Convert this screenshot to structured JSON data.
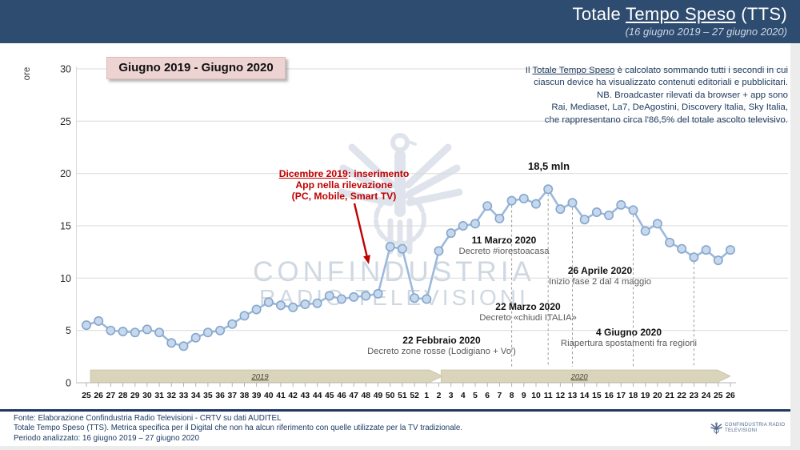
{
  "header": {
    "title_prefix": "Totale ",
    "title_underlined": "Tempo Speso",
    "title_suffix": " (TTS)",
    "subtitle": "(16 giugno 2019 – 27 giugno 2020)"
  },
  "range_box": "Giugno 2019 - Giugno 2020",
  "info_note": {
    "line1_prefix": "Il ",
    "line1_underlined": "Totale Tempo Speso",
    "line1_rest": " è calcolato sommando tutti i secondi in cui",
    "line2": "ciascun device ha visualizzato contenuti editoriali e pubblicitari.",
    "line3": "NB. Broadcaster rilevati da browser + app sono",
    "line4": "Rai, Mediaset, La7, DeAgostini, Discovery Italia, Sky Italia,",
    "line5": "che rappresentano circa l'86,5% del totale ascolto televisivo."
  },
  "app_note": {
    "underlined": "Dicembre 2019",
    "rest": ": inserimento",
    "line2": "App nella rilevazione",
    "line3": "(PC, Mobile, Smart TV)"
  },
  "peak_label": "18,5 mln",
  "events": [
    {
      "date": "22 Febbraio 2020",
      "desc": "Decreto zone rosse (Lodigiano + Vo')"
    },
    {
      "date": "11 Marzo 2020",
      "desc": "Decreto #iorestoacasa"
    },
    {
      "date": "22 Marzo 2020",
      "desc": "Decreto «chiudi ITALIA»"
    },
    {
      "date": "26 Aprile 2020",
      "desc": "Inizio fase 2 dal 4 maggio"
    },
    {
      "date": "4 Giugno 2020",
      "desc": "Riapertura spostamenti fra regioni"
    }
  ],
  "watermark": {
    "line1": "CONFINDUSTRIA",
    "line2": "RADIO TELEVISIONI"
  },
  "footer": {
    "line1": "Fonte: Elaborazione Confindustria Radio Televisioni - CRTV su dati AUDITEL",
    "line2": "Totale Tempo Speso (TTS). Metrica specifica per il Digital che non ha alcun riferimento con quelle utilizzate per la TV tradizionale.",
    "line3": "Periodo analizzato: 16 giugno 2019 – 27 giugno 2020",
    "logo_text": "CONFINDUSTRIA RADIO TELEVISIONI"
  },
  "colors": {
    "header_bg": "#2e4c70",
    "accent_red": "#c00000",
    "band": "#d9d4ba",
    "band_border": "#c9c3a8",
    "line": "#9cb9dc",
    "marker_fill": "#c7d8ec",
    "marker_stroke": "#84a7ce",
    "grid": "#d9d9d9",
    "title_box_bg": "#eed3d3"
  },
  "chart_data": {
    "type": "line",
    "title": "Giugno 2019 - Giugno 2020",
    "ylabel": "ore",
    "ylim": [
      0,
      30
    ],
    "y_ticks": [
      0,
      5,
      10,
      15,
      20,
      25,
      30
    ],
    "grid": true,
    "legend": false,
    "x_labels": [
      "25",
      "26",
      "27",
      "28",
      "29",
      "30",
      "31",
      "32",
      "33",
      "34",
      "35",
      "36",
      "37",
      "38",
      "39",
      "40",
      "41",
      "42",
      "43",
      "44",
      "45",
      "46",
      "47",
      "48",
      "49",
      "50",
      "51",
      "52",
      "1",
      "2",
      "3",
      "4",
      "5",
      "6",
      "7",
      "8",
      "9",
      "10",
      "11",
      "12",
      "13",
      "14",
      "15",
      "16",
      "17",
      "18",
      "19",
      "20",
      "21",
      "22",
      "23",
      "24",
      "25",
      "26"
    ],
    "values": [
      5.5,
      5.9,
      5.0,
      4.9,
      4.8,
      5.1,
      4.8,
      3.8,
      3.5,
      4.3,
      4.8,
      5.0,
      5.6,
      6.4,
      7.0,
      7.7,
      7.4,
      7.2,
      7.5,
      7.6,
      8.3,
      8.0,
      8.2,
      8.3,
      8.5,
      13.0,
      12.8,
      8.1,
      8.0,
      12.6,
      14.3,
      15.0,
      15.2,
      16.9,
      15.7,
      17.4,
      17.6,
      17.1,
      18.5,
      16.6,
      17.2,
      15.6,
      16.3,
      16.0,
      17.0,
      16.5,
      14.5,
      15.2,
      13.4,
      12.8,
      12.0,
      12.7,
      11.7,
      12.7
    ],
    "year_bands": [
      {
        "label": "2019",
        "start": 0,
        "end": 27
      },
      {
        "label": "2020",
        "start": 28,
        "end": 53
      }
    ],
    "dashed_indexes": [
      35,
      38,
      40,
      45,
      50
    ],
    "peak_index": 38,
    "peak_value": 18.5
  }
}
